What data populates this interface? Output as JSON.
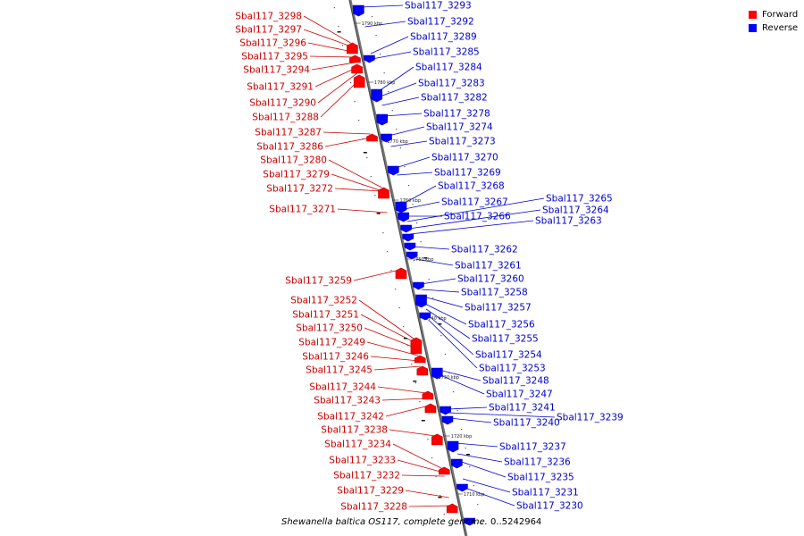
{
  "legend": {
    "forward": {
      "label": "Forward",
      "color": "#ff0000"
    },
    "reverse": {
      "label": "Reverse",
      "color": "#0000ff"
    }
  },
  "caption": {
    "title": "Shewanella baltica OS117, complete genome.",
    "range": "0..5242964"
  },
  "ticks": [
    "1790 kbp",
    "1780 kbp",
    "1770 kbp",
    "1760 kbp",
    "1750 kbp",
    "1740 kbp",
    "1730 kbp",
    "1720 kbp",
    "1710 kbp"
  ],
  "forward_genes": [
    "Sbal117_3298",
    "Sbal117_3297",
    "Sbal117_3296",
    "Sbal117_3295",
    "Sbal117_3294",
    "Sbal117_3291",
    "Sbal117_3290",
    "Sbal117_3288",
    "Sbal117_3287",
    "Sbal117_3286",
    "Sbal117_3280",
    "Sbal117_3279",
    "Sbal117_3272",
    "Sbal117_3271",
    "Sbal117_3259",
    "Sbal117_3252",
    "Sbal117_3251",
    "Sbal117_3250",
    "Sbal117_3249",
    "Sbal117_3246",
    "Sbal117_3245",
    "Sbal117_3244",
    "Sbal117_3243",
    "Sbal117_3242",
    "Sbal117_3238",
    "Sbal117_3234",
    "Sbal117_3233",
    "Sbal117_3232",
    "Sbal117_3229",
    "Sbal117_3228"
  ],
  "reverse_genes": [
    "Sbal117_3293",
    "Sbal117_3292",
    "Sbal117_3289",
    "Sbal117_3285",
    "Sbal117_3284",
    "Sbal117_3283",
    "Sbal117_3282",
    "Sbal117_3278",
    "Sbal117_3274",
    "Sbal117_3273",
    "Sbal117_3270",
    "Sbal117_3269",
    "Sbal117_3268",
    "Sbal117_3267",
    "Sbal117_3265",
    "Sbal117_3264",
    "Sbal117_3266",
    "Sbal117_3263",
    "Sbal117_3262",
    "Sbal117_3261",
    "Sbal117_3260",
    "Sbal117_3258",
    "Sbal117_3257",
    "Sbal117_3256",
    "Sbal117_3255",
    "Sbal117_3254",
    "Sbal117_3253",
    "Sbal117_3248",
    "Sbal117_3247",
    "Sbal117_3241",
    "Sbal117_3240",
    "Sbal117_3239",
    "Sbal117_3237",
    "Sbal117_3236",
    "Sbal117_3235",
    "Sbal117_3231",
    "Sbal117_3230"
  ]
}
